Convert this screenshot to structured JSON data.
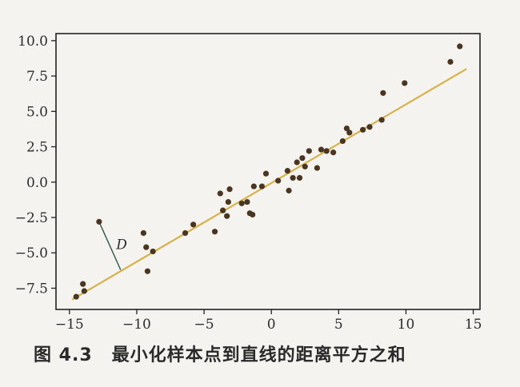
{
  "caption": {
    "figure_number": "图 4.3",
    "text": "最小化样本点到直线的距离平方之和"
  },
  "colors": {
    "axes": "#222222",
    "points": "#4a3520",
    "fit_line": "#d6b24a",
    "distance_segment": "#2f5a4a",
    "background": "#f4f3f0"
  },
  "chart_data": {
    "type": "scatter",
    "xlim": [
      -16,
      15.5
    ],
    "ylim": [
      -9.0,
      10.5
    ],
    "x_ticks": [
      -15,
      -10,
      -5,
      0,
      5,
      10,
      15
    ],
    "x_tick_labels": [
      "−15",
      "−10",
      "−5",
      "0",
      "5",
      "10",
      "15"
    ],
    "y_ticks": [
      10.0,
      7.5,
      5.0,
      2.5,
      0.0,
      -2.5,
      -5.0,
      -7.5
    ],
    "y_tick_labels": [
      "10.0",
      "7.5",
      "5.0",
      "2.5",
      "0.0",
      "−2.5",
      "−5.0",
      "−7.5"
    ],
    "grid": false,
    "annotation": {
      "label": "D",
      "from": [
        -12.8,
        -2.8
      ],
      "to": [
        -11.2,
        -6.2
      ]
    },
    "fit_line": {
      "x": [
        -14.8,
        14.5
      ],
      "y": [
        -8.3,
        8.0
      ]
    },
    "points": {
      "x": [
        -14.5,
        -14.0,
        -13.9,
        -12.8,
        -9.5,
        -9.3,
        -9.2,
        -8.8,
        -6.4,
        -5.8,
        -4.2,
        -3.8,
        -3.6,
        -3.3,
        -3.2,
        -3.1,
        -2.2,
        -1.8,
        -1.6,
        -1.4,
        -1.3,
        -0.7,
        -0.4,
        0.5,
        1.2,
        1.3,
        1.6,
        1.9,
        2.1,
        2.3,
        2.5,
        2.8,
        3.4,
        3.7,
        4.1,
        4.6,
        5.3,
        5.6,
        5.8,
        6.8,
        7.3,
        8.2,
        8.3,
        9.9,
        13.3,
        14.0
      ],
      "y": [
        -8.1,
        -7.2,
        -7.7,
        -2.8,
        -3.6,
        -4.6,
        -6.3,
        -4.9,
        -3.6,
        -3.0,
        -3.5,
        -0.8,
        -2.0,
        -2.4,
        -1.4,
        -0.5,
        -1.5,
        -1.4,
        -2.2,
        -2.3,
        -0.3,
        -0.3,
        0.6,
        0.1,
        0.8,
        -0.6,
        0.3,
        1.4,
        0.3,
        1.7,
        1.1,
        2.2,
        1.0,
        2.3,
        2.2,
        2.1,
        2.9,
        3.8,
        3.5,
        3.7,
        3.9,
        4.4,
        6.3,
        7.0,
        8.5,
        9.6
      ]
    }
  }
}
